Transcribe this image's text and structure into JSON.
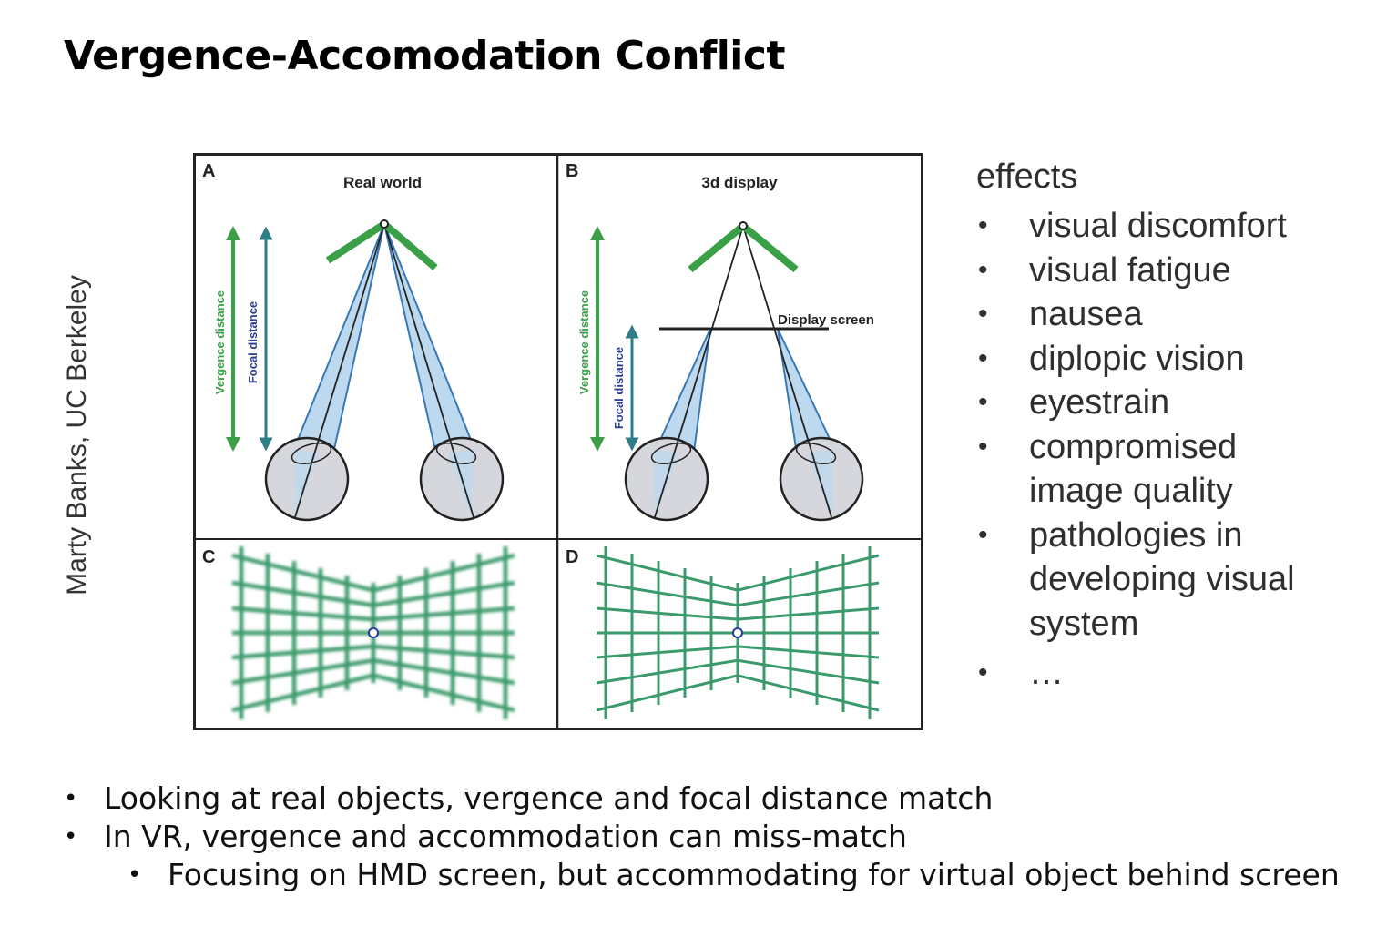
{
  "slide": {
    "title": "Vergence-Accomodation Conflict",
    "credit": "Marty Banks, UC Berkeley"
  },
  "figure": {
    "panels": [
      {
        "letter": "A",
        "title": "Real world"
      },
      {
        "letter": "B",
        "title": "3d display"
      },
      {
        "letter": "C"
      },
      {
        "letter": "D"
      }
    ],
    "labels": {
      "vergence_distance": "Vergence distance",
      "focal_distance": "Focal distance",
      "display_screen": "Display screen"
    },
    "colors": {
      "green": "#3aa047",
      "teal_arrow": "#2f7e87",
      "navy": "#2a3d8f",
      "light_blue": "#bcd9ef",
      "beam_edge": "#3a77b5",
      "eye_fill": "#d5d7dc",
      "grid": "#3b9a6b"
    }
  },
  "effects": {
    "title": "effects",
    "items": [
      "visual discomfort",
      "visual fatigue",
      "nausea",
      "diplopic vision",
      "eyestrain",
      "compromised image quality",
      "pathologies in developing visual system",
      "…"
    ]
  },
  "bullets": [
    {
      "text": "Looking at real objects, vergence and focal distance match",
      "level": 1
    },
    {
      "text": "In VR, vergence and accommodation can miss-match",
      "level": 1
    },
    {
      "text": "Focusing on HMD screen, but accommodating for virtual object behind screen",
      "level": 2
    }
  ]
}
